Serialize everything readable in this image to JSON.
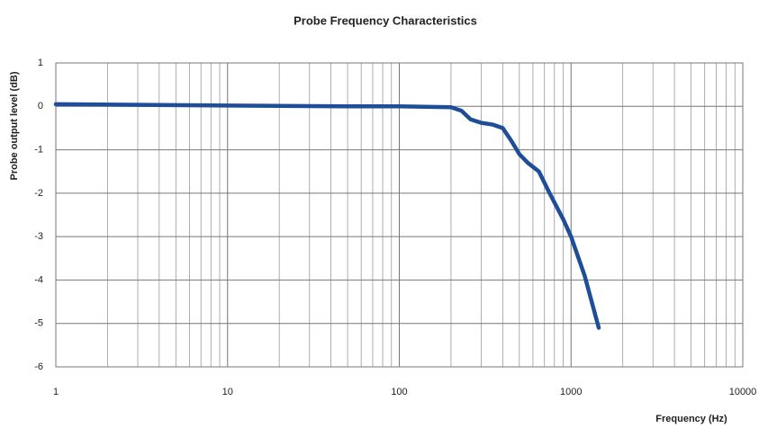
{
  "chart_data": {
    "type": "line",
    "title": "Probe Frequency Characteristics",
    "xlabel": "Frequency (Hz)",
    "ylabel": "Probe output level (dB)",
    "xscale": "log",
    "xlim": [
      1,
      10000
    ],
    "xticks": [
      1,
      10,
      100,
      1000,
      10000
    ],
    "ylim": [
      -6,
      1
    ],
    "yticks": [
      -6,
      -5,
      -4,
      -3,
      -2,
      -1,
      0,
      1
    ],
    "grid": true,
    "minor_grid": true,
    "series": [
      {
        "name": "Probe output level",
        "color": "#1f4e99",
        "x": [
          1,
          10,
          50,
          100,
          200,
          230,
          260,
          300,
          350,
          400,
          450,
          500,
          560,
          650,
          750,
          900,
          1000,
          1200,
          1450
        ],
        "values": [
          0.05,
          0.02,
          0,
          0,
          -0.02,
          -0.1,
          -0.3,
          -0.38,
          -0.42,
          -0.5,
          -0.8,
          -1.1,
          -1.3,
          -1.5,
          -2.0,
          -2.6,
          -3.0,
          -3.9,
          -5.1
        ]
      }
    ]
  }
}
